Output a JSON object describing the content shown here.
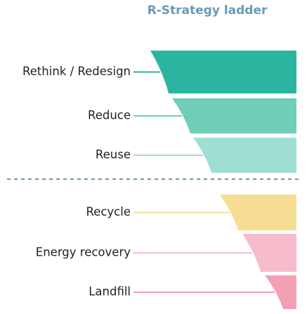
{
  "title": "R-Strategy ladder",
  "layers": [
    {
      "label": "Rethink / Redesign",
      "color": "#2bb5a0",
      "group": 0
    },
    {
      "label": "Reduce",
      "color": "#6fcdb8",
      "group": 0
    },
    {
      "label": "Reuse",
      "color": "#9fdfd3",
      "group": 0
    },
    {
      "label": "Recycle",
      "color": "#f7dc93",
      "group": 1
    },
    {
      "label": "Energy recovery",
      "color": "#f6bccb",
      "group": 1
    },
    {
      "label": "Landfill",
      "color": "#f4a0b4",
      "group": 1
    }
  ]
}
